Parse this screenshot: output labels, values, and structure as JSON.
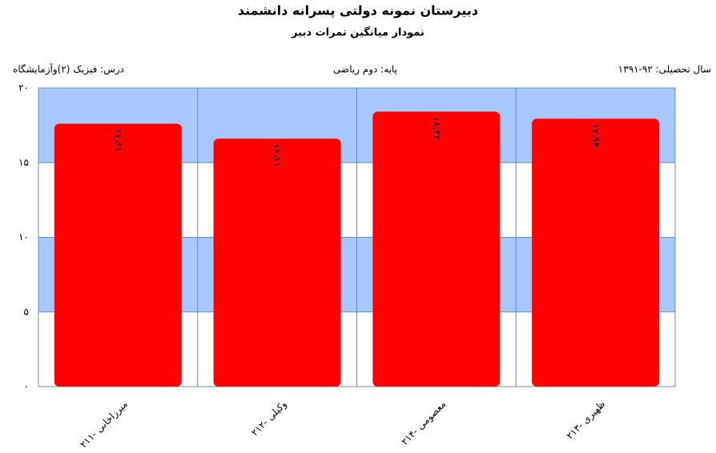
{
  "chart_data": {
    "type": "bar",
    "title": "دبیرستان  نمونه دولتی پسرانه دانشمند",
    "subtitle": "نمودار میانگین نمرات دبیر",
    "header_left": "درس: فیزیک (۲)وآزمایشگاه",
    "header_center": "پایه: دوم ریاضی",
    "header_right": "سال تحصیلی: ۹۲-۱۳۹۱",
    "categories": [
      "میرزاخانی -۲۱۱",
      "وکیلی -۲۱۲",
      "معصومی -۲۱۴",
      "ظهیری -۲۱۳"
    ],
    "values": [
      17.61,
      16.61,
      18.42,
      17.94
    ],
    "value_labels": [
      "۱۷٫۶۱",
      "۱۶٫۶۱",
      "۱۸٫۴۲",
      "۱۷٫۹۴"
    ],
    "color": "#ff0000",
    "stripe_color": "#a6c8ff",
    "ylim": [
      0,
      20
    ],
    "yticks": [
      {
        "value": 0,
        "label": "۰"
      },
      {
        "value": 5,
        "label": "۵"
      },
      {
        "value": 10,
        "label": "۱۰"
      },
      {
        "value": 15,
        "label": "۱۵"
      },
      {
        "value": 20,
        "label": "۲۰"
      }
    ],
    "grid": true
  }
}
